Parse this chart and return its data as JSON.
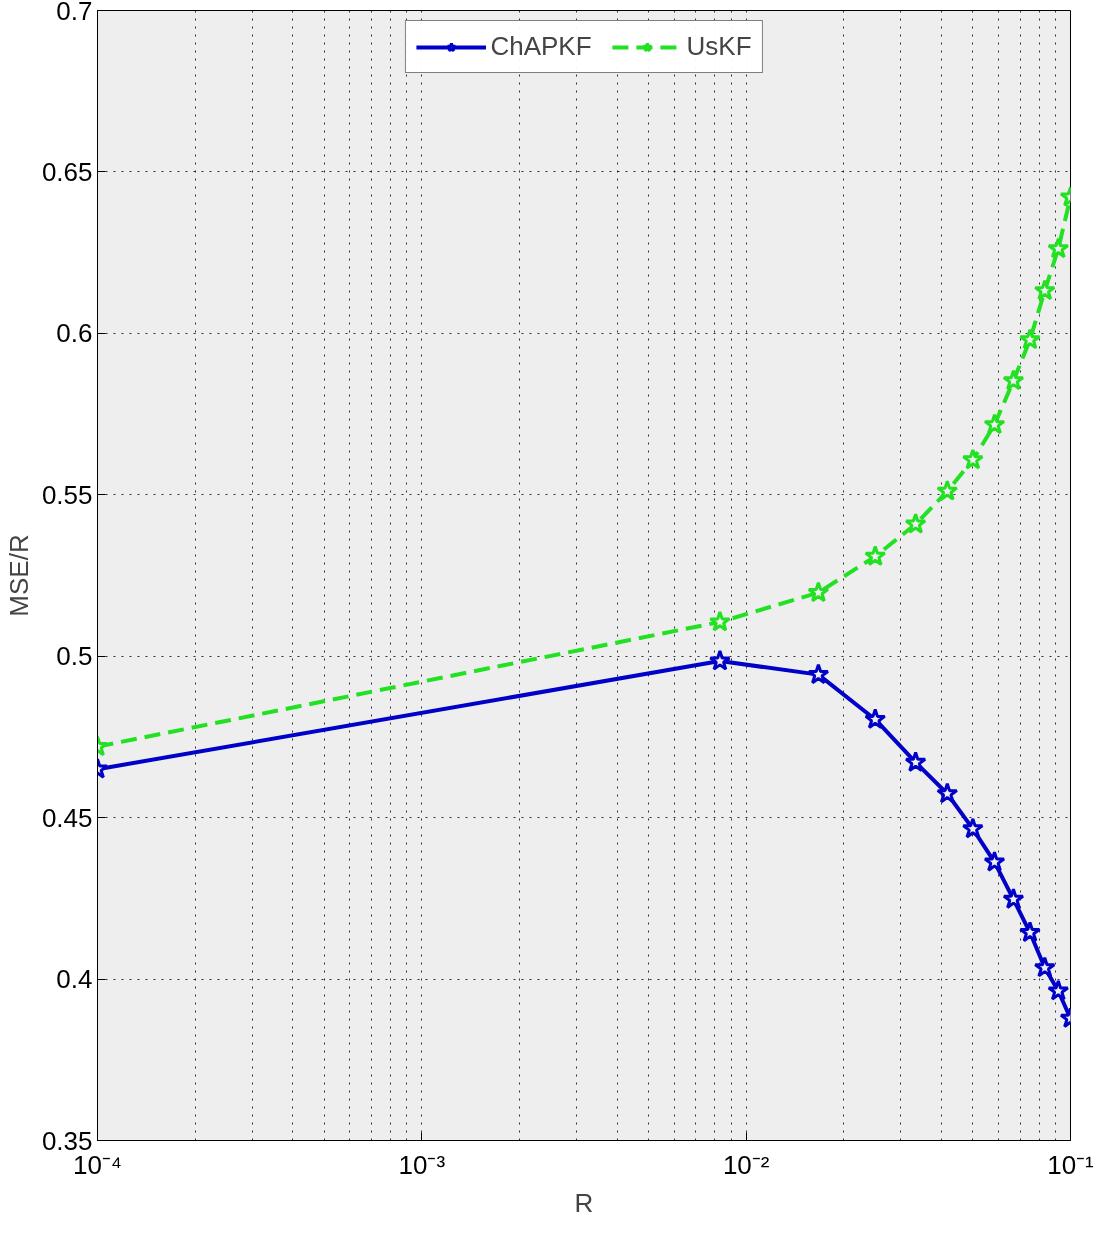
{
  "chart_data": {
    "type": "line",
    "xlabel": "R",
    "ylabel": "MSE/R",
    "log": "x",
    "grid": true,
    "legend": "top",
    "marker": "star",
    "xlim": [
      0.0001,
      0.1
    ],
    "ylim": [
      0.35,
      0.7
    ],
    "xticks": [
      {
        "value": 0.0001,
        "label": "10⁻⁴"
      },
      {
        "value": 0.001,
        "label": "10⁻³"
      },
      {
        "value": 0.01,
        "label": "10⁻²"
      },
      {
        "value": 0.1,
        "label": "10⁻¹"
      }
    ],
    "yticks": [
      0.35,
      0.4,
      0.45,
      0.5,
      0.55,
      0.6,
      0.65,
      0.7
    ],
    "x": [
      0.0001,
      0.0083,
      0.0167,
      0.025,
      0.0333,
      0.0417,
      0.05,
      0.0583,
      0.0667,
      0.075,
      0.0833,
      0.0917,
      0.1
    ],
    "series": [
      {
        "name": "ChAPKF",
        "color": "#0000c8",
        "line_style": "solid",
        "values": [
          0.465,
          0.4985,
          0.4943,
          0.4804,
          0.4671,
          0.4574,
          0.4465,
          0.4362,
          0.4247,
          0.4144,
          0.4035,
          0.3963,
          0.3878
        ]
      },
      {
        "name": "UsKF",
        "color": "#22e022",
        "line_style": "dashed",
        "values": [
          0.472,
          0.5106,
          0.5197,
          0.5309,
          0.5409,
          0.5511,
          0.5608,
          0.5717,
          0.5853,
          0.598,
          0.6132,
          0.6262,
          0.6422
        ]
      }
    ]
  }
}
